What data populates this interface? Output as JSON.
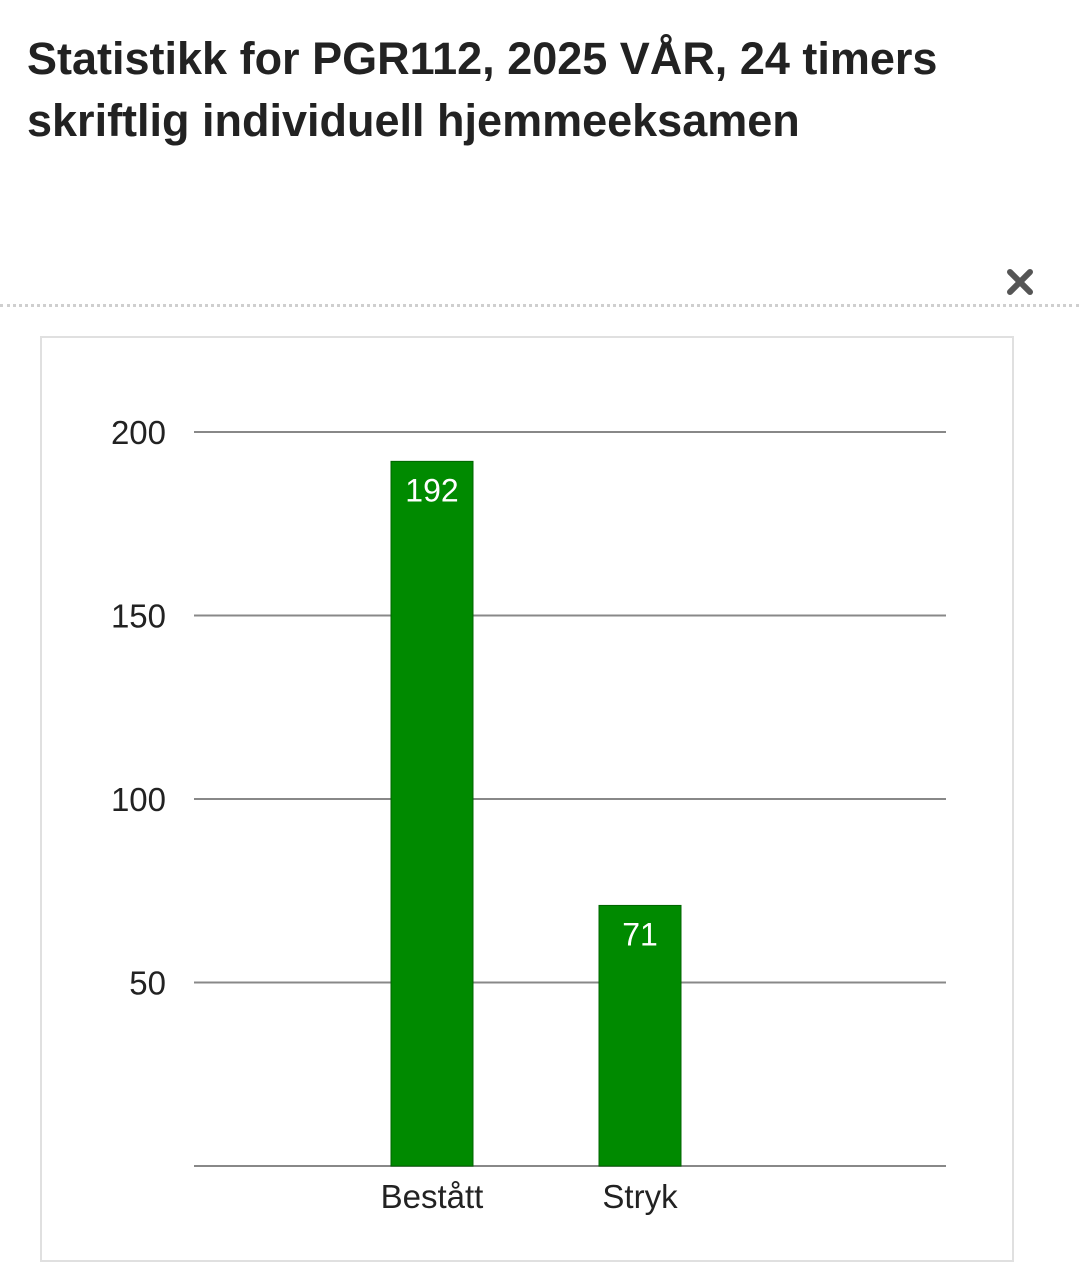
{
  "title": "Statistikk for PGR112, 2025 VÅR, 24 timers skriftlig individuell hjemmeeksamen",
  "close_icon": "close-icon",
  "colors": {
    "bar": "#008a00",
    "bar_border": "#006400",
    "grid": "#888888",
    "text": "#222222"
  },
  "chart_data": {
    "type": "bar",
    "title": "",
    "xlabel": "",
    "ylabel": "",
    "categories": [
      "Bestått",
      "Stryk"
    ],
    "values": [
      192,
      71
    ],
    "data_labels": [
      "192",
      "71"
    ],
    "yticks": [
      50,
      100,
      150,
      200
    ],
    "ytick_labels": [
      "50",
      "100",
      "150",
      "200"
    ],
    "ylim": [
      0,
      200
    ],
    "grid": true,
    "legend": "none"
  }
}
